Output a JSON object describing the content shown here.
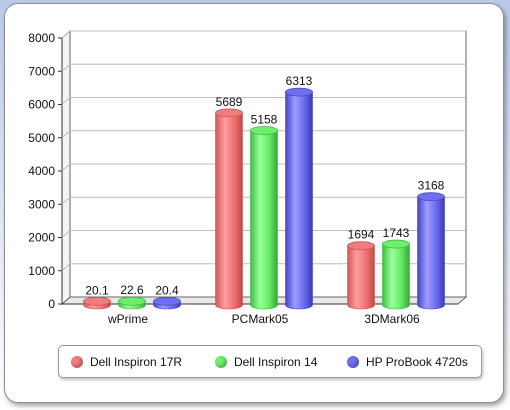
{
  "colors": {
    "series": [
      "#f07c7c",
      "#6cf06c",
      "#6f6ff2"
    ],
    "series_dark": [
      "#c85858",
      "#44b844",
      "#4a4acc"
    ]
  },
  "chart_data": {
    "type": "bar",
    "categories": [
      "wPrime",
      "PCMark05",
      "3DMark06"
    ],
    "series": [
      {
        "name": "Dell Inspiron 17R",
        "values": [
          20.1,
          5689,
          1694
        ],
        "labels": [
          "20.1",
          "5689",
          "1694"
        ]
      },
      {
        "name": "Dell Inspiron 14",
        "values": [
          22.6,
          5158,
          1743
        ],
        "labels": [
          "22.6",
          "5158",
          "1743"
        ]
      },
      {
        "name": "HP ProBook 4720s",
        "values": [
          20.4,
          6313,
          3168
        ],
        "labels": [
          "20.4",
          "6313",
          "3168"
        ]
      }
    ],
    "y_ticks": [
      "0",
      "1000",
      "2000",
      "3000",
      "4000",
      "5000",
      "6000",
      "7000",
      "8000"
    ],
    "ylim": [
      0,
      8000
    ],
    "grid": true,
    "legend_position": "bottom"
  }
}
